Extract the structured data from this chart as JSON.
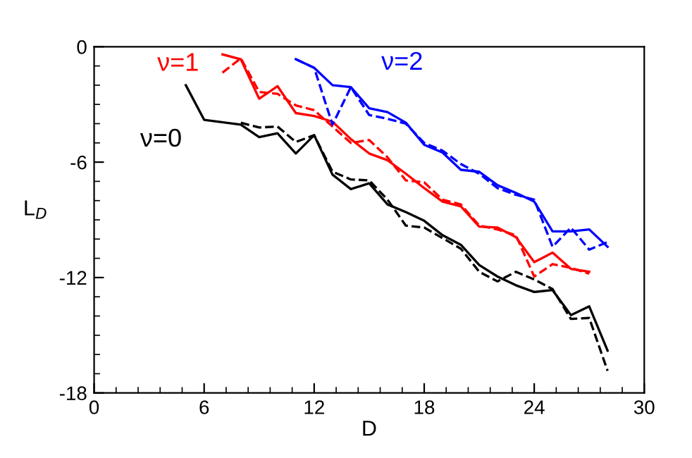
{
  "chart_data": {
    "type": "line",
    "xlabel": "D",
    "ylabel": "L$_{D}$",
    "xlim": [
      0,
      30
    ],
    "ylim": [
      -18,
      0
    ],
    "xticks": [
      0,
      6,
      12,
      18,
      24,
      30
    ],
    "yticks": [
      -18,
      -12,
      -6,
      0
    ],
    "grid": false,
    "legend": false,
    "marker": "none",
    "series": [
      {
        "name": "ν=0",
        "color": "#000000",
        "line_style": "solid",
        "x": [
          5,
          6,
          8,
          9,
          10,
          11,
          12,
          13,
          14,
          15,
          16,
          17,
          18,
          19,
          20,
          21,
          22,
          23,
          24,
          25,
          26,
          27,
          28
        ],
        "values": [
          -2.0,
          -3.8,
          -4.05,
          -4.7,
          -4.5,
          -5.55,
          -4.6,
          -6.65,
          -7.4,
          -7.1,
          -8.2,
          -8.6,
          -9.05,
          -9.8,
          -10.3,
          -11.35,
          -11.95,
          -12.4,
          -12.75,
          -12.65,
          -13.95,
          -13.5,
          -15.8
        ]
      },
      {
        "color": "#000000",
        "line_style": "dashed",
        "x": [
          8,
          9,
          10,
          11,
          12,
          13,
          14,
          15,
          16,
          17,
          18,
          19,
          20,
          21,
          22,
          23,
          24,
          25,
          26,
          27,
          28
        ],
        "values": [
          -3.95,
          -4.2,
          -4.15,
          -4.95,
          -4.6,
          -6.5,
          -6.9,
          -6.95,
          -7.95,
          -9.3,
          -9.4,
          -9.95,
          -10.5,
          -11.7,
          -12.2,
          -11.7,
          -12.1,
          -12.6,
          -14.15,
          -14.1,
          -16.85
        ]
      },
      {
        "name": "ν=1",
        "color": "#ff0000",
        "line_style": "solid",
        "x": [
          7,
          8,
          9,
          10,
          11,
          12,
          13,
          14,
          15,
          16,
          17,
          18,
          19,
          20,
          21,
          22,
          23,
          24,
          25,
          26,
          27
        ],
        "values": [
          -0.4,
          -0.65,
          -2.7,
          -2.05,
          -3.45,
          -3.6,
          -3.9,
          -4.8,
          -5.55,
          -5.9,
          -6.6,
          -7.35,
          -8.05,
          -8.3,
          -9.35,
          -9.4,
          -9.9,
          -11.2,
          -10.7,
          -11.55,
          -11.7
        ]
      },
      {
        "color": "#ff0000",
        "line_style": "dashed",
        "x": [
          7,
          8,
          9,
          10,
          11,
          12,
          13,
          14,
          15,
          16,
          17,
          18,
          19,
          20,
          21,
          22,
          23,
          24,
          25,
          26,
          27
        ],
        "values": [
          -1.35,
          -0.6,
          -2.35,
          -2.45,
          -3.05,
          -3.3,
          -4.15,
          -5.0,
          -4.85,
          -5.75,
          -6.95,
          -7.05,
          -7.95,
          -8.2,
          -9.3,
          -9.5,
          -9.8,
          -11.95,
          -11.3,
          -11.5,
          -11.8
        ]
      },
      {
        "name": "ν=2",
        "color": "#0000ff",
        "line_style": "solid",
        "x": [
          11,
          12,
          13,
          14,
          15,
          16,
          17,
          18,
          19,
          20,
          21,
          22,
          23,
          24,
          25,
          26,
          27,
          28
        ],
        "values": [
          -0.65,
          -1.1,
          -2.0,
          -2.1,
          -3.2,
          -3.4,
          -3.95,
          -5.1,
          -5.5,
          -6.4,
          -6.5,
          -7.2,
          -7.6,
          -8.05,
          -9.6,
          -9.6,
          -9.5,
          -10.4
        ]
      },
      {
        "color": "#0000ff",
        "line_style": "dashed",
        "x": [
          11,
          12,
          13,
          14,
          15,
          16,
          17,
          18,
          19,
          20,
          21,
          22,
          23,
          24,
          25,
          26,
          27,
          28
        ],
        "values": [
          -0.65,
          -1.1,
          -4.05,
          -2.1,
          -3.55,
          -3.75,
          -4.0,
          -5.0,
          -5.4,
          -6.1,
          -6.6,
          -7.35,
          -7.7,
          -7.95,
          -10.4,
          -9.4,
          -10.55,
          -10.15
        ]
      }
    ]
  }
}
